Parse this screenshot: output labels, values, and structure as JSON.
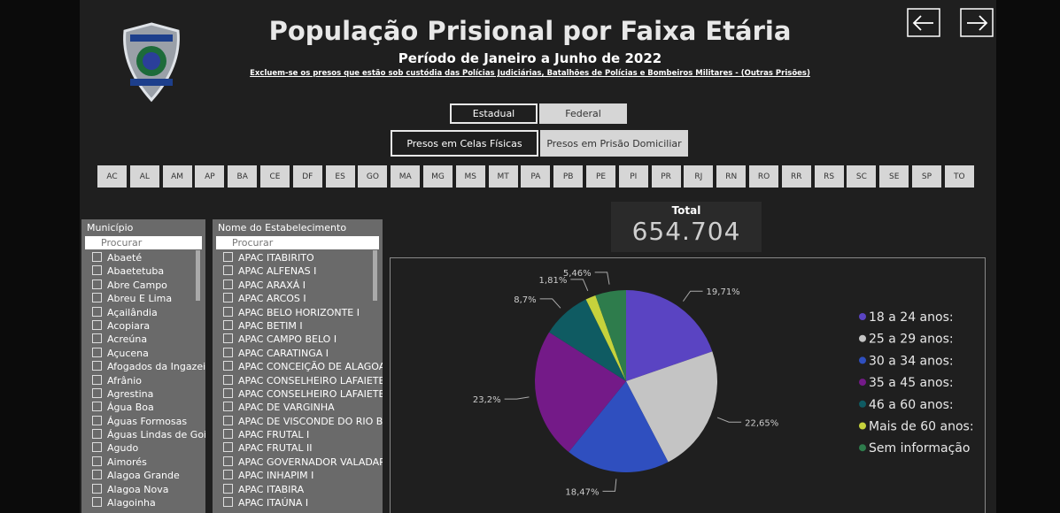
{
  "header": {
    "title": "População Prisional por Faixa Etária",
    "subtitle": "Período de Janeiro a Junho de 2022",
    "note": "Excluem-se os presos que estão sob custódia das Polícias Judiciárias, Batalhões de Polícias e Bombeiros Militares - (Outras Prisões)"
  },
  "toggles": {
    "scope": [
      "Estadual",
      "Federal"
    ],
    "custody": [
      "Presos em Celas Físicas",
      "Presos em Prisão Domiciliar"
    ]
  },
  "states": [
    "AC",
    "AL",
    "AM",
    "AP",
    "BA",
    "CE",
    "DF",
    "ES",
    "GO",
    "MA",
    "MG",
    "MS",
    "MT",
    "PA",
    "PB",
    "PE",
    "PI",
    "PR",
    "RJ",
    "RN",
    "RO",
    "RR",
    "RS",
    "SC",
    "SE",
    "SP",
    "TO"
  ],
  "slicers": [
    {
      "title": "Município",
      "search": "Procurar",
      "items": [
        "Abaeté",
        "Abaetetuba",
        "Abre Campo",
        "Abreu E Lima",
        "Açailândia",
        "Acopiara",
        "Acreúna",
        "Açucena",
        "Afogados da Ingazeira",
        "Afrânio",
        "Agrestina",
        "Água Boa",
        "Águas Formosas",
        "Águas Lindas de Goiás",
        "Agudo",
        "Aimorés",
        "Alagoa Grande",
        "Alagoa Nova",
        "Alagoinha"
      ]
    },
    {
      "title": "Nome do Estabelecimento",
      "search": "Procurar",
      "items": [
        "APAC ITABIRITO",
        "APAC ALFENAS I",
        "APAC ARAXÁ I",
        "APAC ARCOS I",
        "APAC BELO HORIZONTE I",
        "APAC BETIM I",
        "APAC CAMPO BELO I",
        "APAC CARATINGA I",
        "APAC CONCEIÇÃO DE ALAGOAS I",
        "APAC CONSELHEIRO LAFAIETE I",
        "APAC CONSELHEIRO LAFAIETE II",
        "APAC DE VARGINHA",
        "APAC DE VISCONDE DO RIO BR...",
        "APAC FRUTAL I",
        "APAC FRUTAL II",
        "APAC GOVERNADOR VALADAR...",
        "APAC INHAPIM I",
        "APAC ITABIRA",
        "APAC ITAÚNA I"
      ]
    }
  ],
  "total": {
    "label": "Total",
    "value": "654.704"
  },
  "chart_data": {
    "type": "pie",
    "categories": [
      "18 a 24 anos:",
      "25 a 29 anos:",
      "30 a 34 anos:",
      "35 a 45 anos:",
      "46 a 60 anos:",
      "Mais de 60 anos:",
      "Sem informação"
    ],
    "values": [
      19.71,
      22.65,
      18.47,
      23.2,
      8.7,
      1.81,
      5.46
    ],
    "value_labels": [
      "19,71%",
      "22,65%",
      "18,47%",
      "23,2%",
      "8,7%",
      "1,81%",
      "5,46%"
    ],
    "colors": [
      "#5a44c2",
      "#c4c4c4",
      "#2f4fbf",
      "#741a88",
      "#0f5b62",
      "#c6d23c",
      "#2e7c4c"
    ],
    "legend": "right"
  }
}
